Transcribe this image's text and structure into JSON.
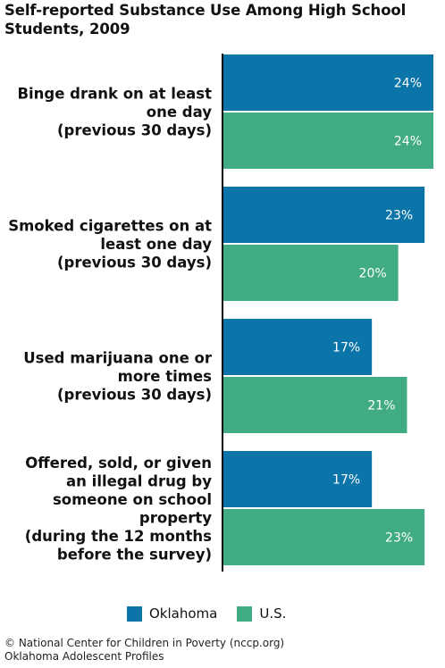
{
  "chart_data": {
    "type": "bar",
    "orientation": "horizontal",
    "title_lines": [
      "Self-reported Substance Use Among High School",
      "Students, 2009"
    ],
    "categories": [
      {
        "lines": [
          "Binge drank on at least",
          "one day",
          "(previous 30 days)"
        ]
      },
      {
        "lines": [
          "Smoked cigarettes on at",
          "least one day",
          "(previous 30 days)"
        ]
      },
      {
        "lines": [
          "Used marijuana one or",
          "more times",
          "(previous 30 days)"
        ]
      },
      {
        "lines": [
          "Offered, sold, or given",
          "an illegal drug by",
          "someone on school",
          "property",
          "(during the 12 months",
          "before the survey)"
        ]
      }
    ],
    "series": [
      {
        "name": "Oklahoma",
        "color": "#0b74a8",
        "values": [
          24,
          23,
          17,
          17
        ],
        "labels": [
          "24%",
          "23%",
          "17%",
          "17%"
        ]
      },
      {
        "name": "U.S.",
        "color": "#41ab84",
        "values": [
          24,
          20,
          21,
          23
        ],
        "labels": [
          "24%",
          "20%",
          "21%",
          "23%"
        ]
      }
    ],
    "unit": "%",
    "xlim": [
      0,
      24
    ],
    "grid": false,
    "legend_position": "bottom"
  },
  "footer": {
    "line1": "© National Center for Children in Poverty (nccp.org)",
    "line2": "Oklahoma Adolescent Profiles"
  }
}
